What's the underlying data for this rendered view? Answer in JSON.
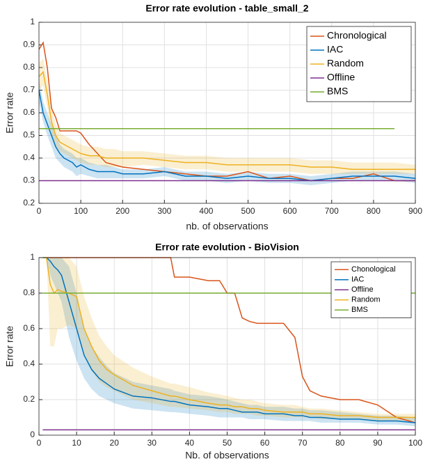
{
  "chart_data": [
    {
      "type": "line",
      "title": "Error rate evolution - table_small_2",
      "xlabel": "nb. of observations",
      "ylabel": "Error rate",
      "x": [
        0,
        10,
        20,
        30,
        40,
        50,
        60,
        70,
        80,
        90,
        100,
        120,
        140,
        160,
        180,
        200,
        250,
        300,
        350,
        400,
        450,
        500,
        550,
        600,
        650,
        700,
        750,
        800,
        850,
        900
      ],
      "series": [
        {
          "name": "Chronological",
          "color": "#d95319",
          "values": [
            0.88,
            0.91,
            0.8,
            0.62,
            0.58,
            0.52,
            0.52,
            0.52,
            0.52,
            0.52,
            0.51,
            0.46,
            0.42,
            0.38,
            0.37,
            0.36,
            0.35,
            0.34,
            0.33,
            0.32,
            0.32,
            0.34,
            0.31,
            0.32,
            0.3,
            0.31,
            0.31,
            0.33,
            0.3,
            0.3
          ]
        },
        {
          "name": "IAC",
          "color": "#0072bd",
          "values": [
            0.7,
            0.6,
            0.55,
            0.5,
            0.45,
            0.42,
            0.4,
            0.39,
            0.38,
            0.36,
            0.37,
            0.35,
            0.34,
            0.34,
            0.34,
            0.33,
            0.33,
            0.34,
            0.32,
            0.32,
            0.31,
            0.32,
            0.31,
            0.31,
            0.3,
            0.31,
            0.32,
            0.32,
            0.32,
            0.31
          ],
          "lower": [
            0.65,
            0.56,
            0.5,
            0.45,
            0.4,
            0.38,
            0.36,
            0.35,
            0.34,
            0.32,
            0.33,
            0.32,
            0.31,
            0.31,
            0.31,
            0.31,
            0.31,
            0.32,
            0.3,
            0.3,
            0.29,
            0.3,
            0.29,
            0.29,
            0.28,
            0.29,
            0.3,
            0.3,
            0.3,
            0.29
          ],
          "upper": [
            0.75,
            0.65,
            0.6,
            0.55,
            0.5,
            0.46,
            0.44,
            0.43,
            0.42,
            0.4,
            0.4,
            0.38,
            0.37,
            0.37,
            0.36,
            0.35,
            0.35,
            0.36,
            0.34,
            0.34,
            0.33,
            0.34,
            0.33,
            0.33,
            0.32,
            0.33,
            0.34,
            0.34,
            0.34,
            0.33
          ]
        },
        {
          "name": "Random",
          "color": "#edb120",
          "values": [
            0.76,
            0.78,
            0.68,
            0.56,
            0.5,
            0.47,
            0.46,
            0.45,
            0.44,
            0.43,
            0.42,
            0.41,
            0.41,
            0.4,
            0.4,
            0.4,
            0.4,
            0.39,
            0.38,
            0.38,
            0.37,
            0.37,
            0.37,
            0.37,
            0.36,
            0.36,
            0.35,
            0.35,
            0.35,
            0.35
          ],
          "lower": [
            0.7,
            0.72,
            0.62,
            0.5,
            0.45,
            0.43,
            0.42,
            0.41,
            0.4,
            0.39,
            0.38,
            0.37,
            0.37,
            0.36,
            0.36,
            0.36,
            0.37,
            0.36,
            0.35,
            0.35,
            0.34,
            0.34,
            0.34,
            0.34,
            0.33,
            0.33,
            0.33,
            0.33,
            0.33,
            0.33
          ],
          "upper": [
            0.82,
            0.84,
            0.74,
            0.62,
            0.55,
            0.51,
            0.5,
            0.49,
            0.48,
            0.47,
            0.46,
            0.45,
            0.45,
            0.44,
            0.44,
            0.43,
            0.43,
            0.42,
            0.41,
            0.41,
            0.4,
            0.4,
            0.4,
            0.4,
            0.39,
            0.39,
            0.38,
            0.38,
            0.38,
            0.37
          ]
        },
        {
          "name": "Offline",
          "color": "#7e2f8e",
          "values": [
            0.3,
            0.3,
            0.3,
            0.3,
            0.3,
            0.3,
            0.3,
            0.3,
            0.3,
            0.3,
            0.3,
            0.3,
            0.3,
            0.3,
            0.3,
            0.3,
            0.3,
            0.3,
            0.3,
            0.3,
            0.3,
            0.3,
            0.3,
            0.3,
            0.3,
            0.3,
            0.3,
            0.3,
            0.3,
            0.3
          ]
        },
        {
          "name": "BMS",
          "color": "#77ac30",
          "values": [
            0.53,
            0.53,
            0.53,
            0.53,
            0.53,
            0.53,
            0.53,
            0.53,
            0.53,
            0.53,
            0.53,
            0.53,
            0.53,
            0.53,
            0.53,
            0.53,
            0.53,
            0.53,
            0.53,
            0.53,
            0.53,
            0.53,
            0.53,
            0.53,
            0.53,
            0.53,
            0.53,
            0.53,
            0.53,
            null
          ]
        }
      ],
      "xlim": [
        0,
        900
      ],
      "xticks": [
        0,
        100,
        200,
        300,
        400,
        500,
        600,
        700,
        800,
        900
      ],
      "ylim": [
        0.2,
        1
      ],
      "yticks": [
        0.2,
        0.3,
        0.4,
        0.5,
        0.6,
        0.7,
        0.8,
        0.9,
        1
      ],
      "grid": true,
      "legend": "northeast"
    },
    {
      "type": "line",
      "title": "Error rate evolution - BioVision",
      "xlabel": "Nb. of observations",
      "ylabel": "Error rate",
      "x": [
        1,
        2,
        3,
        4,
        5,
        6,
        8,
        10,
        12,
        14,
        16,
        18,
        20,
        25,
        30,
        35,
        36,
        40,
        45,
        48,
        50,
        52,
        54,
        56,
        58,
        60,
        65,
        68,
        70,
        72,
        75,
        80,
        85,
        90,
        95,
        100
      ],
      "series": [
        {
          "name": "Chonological",
          "color": "#d95319",
          "values": [
            1,
            1,
            1,
            1,
            1,
            1,
            1,
            1,
            1,
            1,
            1,
            1,
            1,
            1,
            1,
            1,
            0.89,
            0.89,
            0.87,
            0.87,
            0.8,
            0.8,
            0.66,
            0.64,
            0.63,
            0.63,
            0.63,
            0.55,
            0.33,
            0.25,
            0.22,
            0.2,
            0.2,
            0.17,
            0.1,
            0.07
          ]
        },
        {
          "name": "IAC",
          "color": "#0072bd",
          "values": [
            1,
            1,
            0.98,
            0.95,
            0.93,
            0.9,
            0.75,
            0.6,
            0.45,
            0.37,
            0.32,
            0.29,
            0.26,
            0.22,
            0.21,
            0.19,
            0.19,
            0.17,
            0.16,
            0.15,
            0.15,
            0.14,
            0.13,
            0.13,
            0.13,
            0.12,
            0.12,
            0.11,
            0.11,
            0.1,
            0.1,
            0.09,
            0.09,
            0.08,
            0.08,
            0.07
          ],
          "lower": [
            1,
            1,
            0.9,
            0.85,
            0.8,
            0.75,
            0.55,
            0.42,
            0.32,
            0.26,
            0.22,
            0.2,
            0.18,
            0.15,
            0.14,
            0.13,
            0.13,
            0.12,
            0.11,
            0.1,
            0.1,
            0.1,
            0.1,
            0.09,
            0.09,
            0.09,
            0.08,
            0.08,
            0.08,
            0.08,
            0.07,
            0.07,
            0.07,
            0.06,
            0.06,
            0.05
          ],
          "upper": [
            1,
            1,
            1,
            1,
            1,
            1,
            0.95,
            0.8,
            0.6,
            0.5,
            0.44,
            0.39,
            0.35,
            0.3,
            0.28,
            0.26,
            0.25,
            0.23,
            0.22,
            0.21,
            0.2,
            0.19,
            0.18,
            0.17,
            0.17,
            0.16,
            0.16,
            0.15,
            0.15,
            0.14,
            0.14,
            0.13,
            0.12,
            0.11,
            0.11,
            0.1
          ]
        },
        {
          "name": "Offline",
          "color": "#7e2f8e",
          "values": [
            0.03,
            0.03,
            0.03,
            0.03,
            0.03,
            0.03,
            0.03,
            0.03,
            0.03,
            0.03,
            0.03,
            0.03,
            0.03,
            0.03,
            0.03,
            0.03,
            0.03,
            0.03,
            0.03,
            0.03,
            0.03,
            0.03,
            0.03,
            0.03,
            0.03,
            0.03,
            0.03,
            0.03,
            0.03,
            0.03,
            0.03,
            0.03,
            0.03,
            0.03,
            0.03,
            0.03
          ]
        },
        {
          "name": "Random",
          "color": "#edb120",
          "values": [
            1,
            1,
            0.85,
            0.8,
            0.82,
            0.81,
            0.8,
            0.78,
            0.6,
            0.5,
            0.42,
            0.37,
            0.34,
            0.28,
            0.25,
            0.22,
            0.22,
            0.2,
            0.18,
            0.17,
            0.17,
            0.16,
            0.16,
            0.15,
            0.15,
            0.14,
            0.13,
            0.13,
            0.13,
            0.12,
            0.12,
            0.11,
            0.11,
            0.1,
            0.1,
            0.1
          ],
          "lower": [
            1,
            1,
            0.5,
            0.5,
            0.6,
            0.6,
            0.62,
            0.6,
            0.45,
            0.36,
            0.3,
            0.27,
            0.25,
            0.2,
            0.18,
            0.16,
            0.16,
            0.15,
            0.14,
            0.13,
            0.13,
            0.12,
            0.12,
            0.12,
            0.11,
            0.11,
            0.1,
            0.1,
            0.1,
            0.1,
            0.09,
            0.09,
            0.09,
            0.08,
            0.08,
            0.08
          ],
          "upper": [
            1,
            1,
            1,
            1,
            1,
            1,
            1,
            0.95,
            0.78,
            0.66,
            0.56,
            0.5,
            0.45,
            0.38,
            0.33,
            0.29,
            0.29,
            0.27,
            0.24,
            0.23,
            0.22,
            0.21,
            0.2,
            0.2,
            0.19,
            0.18,
            0.17,
            0.17,
            0.16,
            0.15,
            0.15,
            0.14,
            0.13,
            0.12,
            0.12,
            0.12
          ]
        },
        {
          "name": "BMS",
          "color": "#77ac30",
          "values": [
            0.8,
            0.8,
            0.8,
            0.8,
            0.8,
            0.8,
            0.8,
            0.8,
            0.8,
            0.8,
            0.8,
            0.8,
            0.8,
            0.8,
            0.8,
            0.8,
            0.8,
            0.8,
            0.8,
            0.8,
            0.8,
            0.8,
            0.8,
            0.8,
            0.8,
            0.8,
            0.8,
            0.8,
            0.8,
            0.8,
            0.8,
            0.8,
            0.8,
            0.8,
            0.8,
            0.8
          ]
        }
      ],
      "xlim": [
        0,
        100
      ],
      "xticks": [
        0,
        10,
        20,
        30,
        40,
        50,
        60,
        70,
        80,
        90,
        100
      ],
      "ylim": [
        0,
        1
      ],
      "yticks": [
        0,
        0.2,
        0.4,
        0.6,
        0.8,
        1
      ],
      "grid": true,
      "legend": "northeast"
    }
  ]
}
